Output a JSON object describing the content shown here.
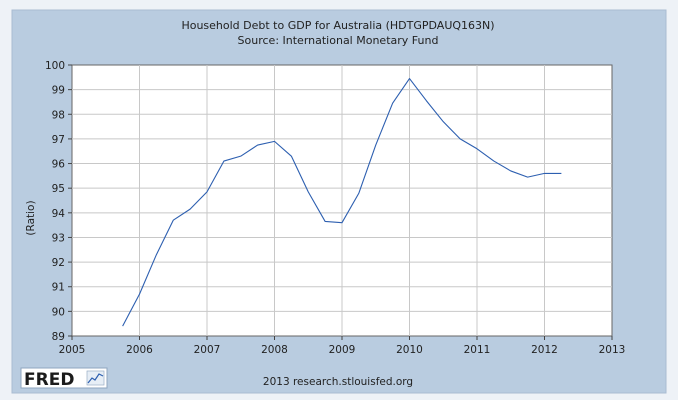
{
  "chart_data": {
    "type": "line",
    "title": "Household Debt to GDP for Australia (HDTGPDAUQ163N)",
    "subtitle": "Source: International Monetary Fund",
    "xlabel": "",
    "ylabel": "(Ratio)",
    "xlim": [
      2005,
      2013
    ],
    "ylim": [
      89,
      100
    ],
    "x_ticks": [
      "2005",
      "2006",
      "2007",
      "2008",
      "2009",
      "2010",
      "2011",
      "2012",
      "2013"
    ],
    "y_ticks": [
      "89",
      "90",
      "91",
      "92",
      "93",
      "94",
      "95",
      "96",
      "97",
      "98",
      "99",
      "100"
    ],
    "grid": true,
    "series": [
      {
        "color": "#2d5fb0",
        "x": [
          2005.75,
          2006.0,
          2006.25,
          2006.5,
          2006.75,
          2007.0,
          2007.25,
          2007.5,
          2007.75,
          2008.0,
          2008.25,
          2008.5,
          2008.75,
          2009.0,
          2009.25,
          2009.5,
          2009.75,
          2010.0,
          2010.25,
          2010.5,
          2010.75,
          2011.0,
          2011.25,
          2011.5,
          2011.75,
          2012.0,
          2012.25
        ],
        "values": [
          89.4,
          90.7,
          92.3,
          93.7,
          94.15,
          94.85,
          96.1,
          96.3,
          96.75,
          96.9,
          96.3,
          94.85,
          93.65,
          93.6,
          94.8,
          96.75,
          98.45,
          99.45,
          98.55,
          97.7,
          97.0,
          96.6,
          96.1,
          95.7,
          95.45,
          95.6,
          95.6
        ]
      }
    ]
  },
  "footer": {
    "logo_text": "FRED",
    "source_text": "2013 research.stlouisfed.org"
  },
  "colors": {
    "frame_bg": "#b9cce0",
    "plot_bg": "#ffffff",
    "grid": "#c8c8c8",
    "line": "#2d5fb0"
  }
}
